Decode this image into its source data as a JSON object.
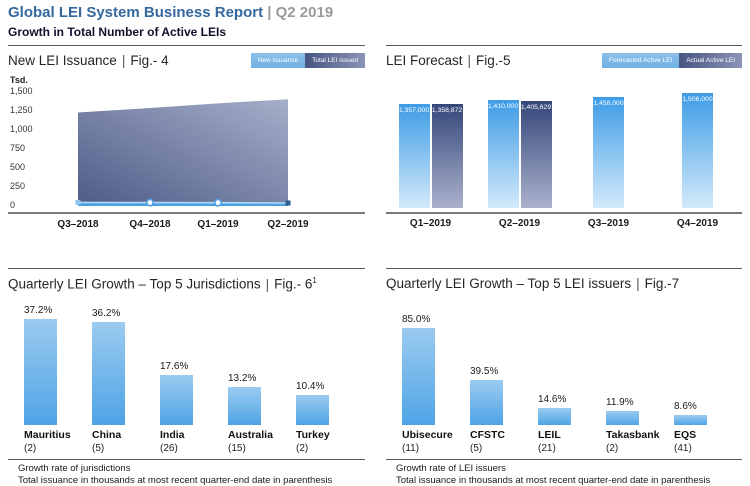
{
  "header": {
    "title": "Global LEI System Business Report",
    "separator": "|",
    "period": "Q2 2019",
    "subtitle": "Growth in Total Number of Active LEIs"
  },
  "colors": {
    "title-blue": "#35689f",
    "light-blue": "#4c9fe1",
    "navy": "#46557f"
  },
  "chart_data": [
    {
      "id": "fig4",
      "type": "area",
      "title": "New LEI Issuance",
      "fig": "Fig.- 4",
      "unit": "Tsd.",
      "categories": [
        "Q3–2018",
        "Q4–2018",
        "Q1–2019",
        "Q2–2019"
      ],
      "series": [
        {
          "name": "New issuance",
          "values": [
            48,
            45,
            43,
            40
          ]
        },
        {
          "name": "Total LEI issued",
          "values": [
            1230,
            1290,
            1350,
            1405
          ]
        }
      ],
      "ylim": [
        0,
        1500
      ],
      "yticks": [
        "1,500",
        "1,250",
        "1,000",
        "750",
        "500",
        "250",
        "0"
      ],
      "grid": false,
      "legend_position": "top-right"
    },
    {
      "id": "fig5",
      "type": "bar",
      "title": "LEI Forecast",
      "fig": "Fig.-5",
      "categories": [
        "Q1–2019",
        "Q2–2019",
        "Q3–2019",
        "Q4–2019"
      ],
      "series": [
        {
          "name": "Forecasted Active LEI",
          "values": [
            1357000,
            1410000,
            1458000,
            1506000
          ],
          "labels": [
            "1,357,000",
            "1,410,000",
            "1,458,000",
            "1,506,000"
          ]
        },
        {
          "name": "Actual Active LEI",
          "values": [
            1358872,
            1405629,
            null,
            null
          ],
          "labels": [
            "1,358,872",
            "1,405,629",
            null,
            null
          ]
        }
      ],
      "grid": false,
      "legend_position": "top-right"
    },
    {
      "id": "fig6",
      "type": "bar",
      "title": "Quarterly LEI Growth – Top 5 Jurisdictions",
      "fig": "Fig.- 6",
      "fig_superscript": "1",
      "categories": [
        "Mauritius",
        "China",
        "India",
        "Australia",
        "Turkey"
      ],
      "category_notes": [
        "(2)",
        "(5)",
        "(26)",
        "(15)",
        "(2)"
      ],
      "values": [
        37.2,
        36.2,
        17.6,
        13.2,
        10.4
      ],
      "value_labels": [
        "37.2%",
        "36.2%",
        "17.6%",
        "13.2%",
        "10.4%"
      ],
      "grid": false,
      "footnotes": {
        "line1": "Growth rate of jurisdictions",
        "line2": "Total issuance in thousands at most recent quarter-end date in parenthesis"
      }
    },
    {
      "id": "fig7",
      "type": "bar",
      "title": "Quarterly LEI Growth – Top 5 LEI issuers",
      "fig": "Fig.-7",
      "categories": [
        "Ubisecure",
        "CFSTC",
        "LEIL",
        "Takasbank",
        "EQS"
      ],
      "category_notes": [
        "(11)",
        "(5)",
        "(21)",
        "(2)",
        "(41)"
      ],
      "values": [
        85.0,
        39.5,
        14.6,
        11.9,
        8.6
      ],
      "value_labels": [
        "85.0%",
        "39.5%",
        "14.6%",
        "11.9%",
        "8.6%"
      ],
      "grid": false,
      "footnotes": {
        "line1": "Growth rate of LEI issuers",
        "line2": "Total issuance in thousands at most recent quarter-end date in parenthesis"
      }
    }
  ]
}
